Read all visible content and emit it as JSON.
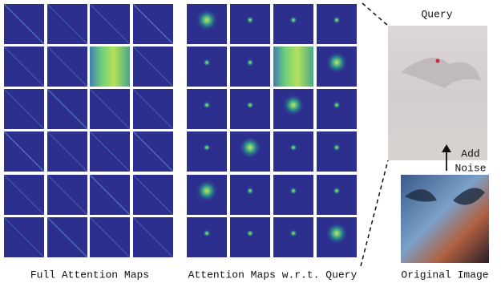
{
  "labels": {
    "query": "Query",
    "add_noise": [
      "Add",
      "Noise"
    ],
    "full_attention": "Full Attention Maps",
    "query_attention": "Attention Maps w.r.t. Query",
    "original": "Original Image"
  }
}
